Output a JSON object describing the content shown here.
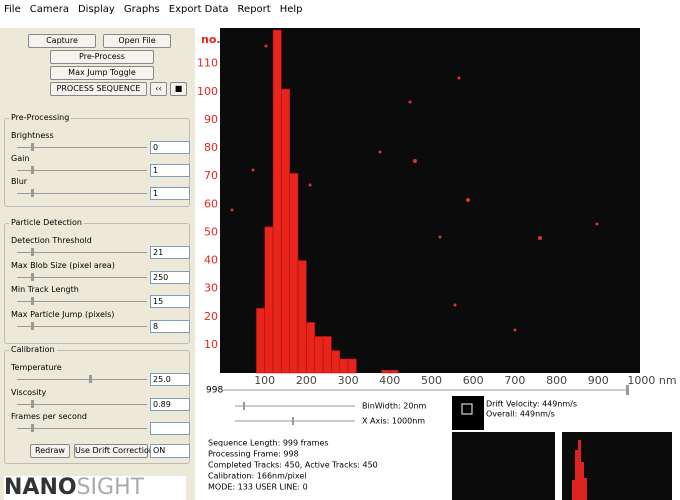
{
  "menu": [
    "File",
    "Camera",
    "Display",
    "Graphs",
    "Export Data",
    "Report",
    "Help"
  ],
  "buttons": {
    "capture": "Capture",
    "open_file": "Open File",
    "pre_process": "Pre-Process",
    "max_jump": "Max Jump Toggle",
    "process_sequence": "PROCESS SEQUENCE",
    "rewind": "‹‹",
    "stop": "■",
    "redraw": "Redraw",
    "drift_correction": "Use Drift Correction",
    "drift_state": "ON"
  },
  "groups": [
    {
      "title": "Pre-Processing",
      "fields": [
        {
          "label": "Brightness",
          "value": "0"
        },
        {
          "label": "Gain",
          "value": "1"
        },
        {
          "label": "Blur",
          "value": "1"
        }
      ]
    },
    {
      "title": "Particle Detection",
      "fields": [
        {
          "label": "Detection Threshold",
          "value": "21"
        },
        {
          "label": "Max Blob Size (pixel area)",
          "value": "250"
        },
        {
          "label": "Min Track Length",
          "value": "15"
        },
        {
          "label": "Max Particle Jump (pixels)",
          "value": "8"
        }
      ]
    },
    {
      "title": "Calibration",
      "fields": [
        {
          "label": "Temperature",
          "value": "25.0"
        },
        {
          "label": "Viscosity",
          "value": "0.89"
        },
        {
          "label": "Frames per second"
        }
      ]
    }
  ],
  "logo": {
    "bold": "NANO",
    "light": "SIGHT"
  },
  "chart_data": {
    "type": "histogram",
    "ylabel": "no.",
    "color": "#e8241c",
    "bins": [
      80,
      100,
      120,
      140,
      160,
      180,
      200,
      220,
      240,
      260,
      280,
      300,
      320,
      340,
      360,
      380,
      400,
      420
    ],
    "counts": [
      23,
      52,
      122,
      101,
      71,
      40,
      18,
      13,
      13,
      8,
      5,
      5,
      0,
      0,
      0,
      1,
      1
    ],
    "xlim": [
      0,
      1000
    ],
    "xticks": [
      100,
      200,
      300,
      400,
      500,
      600,
      700,
      800,
      900,
      {
        "value": 1000,
        "label": "1000 nm"
      }
    ],
    "ylim": [
      0,
      122
    ],
    "yticks": [
      10,
      20,
      30,
      40,
      50,
      60,
      70,
      80,
      90,
      100,
      110
    ]
  },
  "frame_slider": "998",
  "bin_width": "BinWidth: 20nm",
  "x_axis": "X Axis: 1000nm",
  "drift": [
    "Drift Velocity: 449nm/s",
    "Overall: 449nm/s"
  ],
  "status": [
    "Sequence Length: 999 frames",
    "Processing Frame: 998",
    "Completed Tracks: 450, Active Tracks: 450",
    "Calibration: 166nm/pixel",
    "MODE: 133  USER LINE: 0"
  ]
}
